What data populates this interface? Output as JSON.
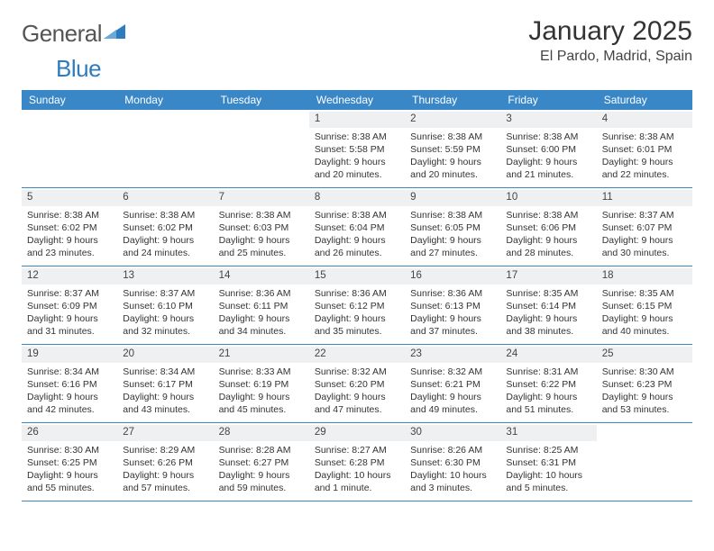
{
  "brand": {
    "name_part1": "General",
    "name_part2": "Blue"
  },
  "title": "January 2025",
  "location": "El Pardo, Madrid, Spain",
  "colors": {
    "header_bg": "#3a87c8",
    "daynum_bg": "#eef0f2",
    "accent": "#2e7cc0"
  },
  "day_names": [
    "Sunday",
    "Monday",
    "Tuesday",
    "Wednesday",
    "Thursday",
    "Friday",
    "Saturday"
  ],
  "weeks": [
    [
      {
        "n": "",
        "sr": "",
        "ss": "",
        "dl": ""
      },
      {
        "n": "",
        "sr": "",
        "ss": "",
        "dl": ""
      },
      {
        "n": "",
        "sr": "",
        "ss": "",
        "dl": ""
      },
      {
        "n": "1",
        "sr": "Sunrise: 8:38 AM",
        "ss": "Sunset: 5:58 PM",
        "dl": "Daylight: 9 hours and 20 minutes."
      },
      {
        "n": "2",
        "sr": "Sunrise: 8:38 AM",
        "ss": "Sunset: 5:59 PM",
        "dl": "Daylight: 9 hours and 20 minutes."
      },
      {
        "n": "3",
        "sr": "Sunrise: 8:38 AM",
        "ss": "Sunset: 6:00 PM",
        "dl": "Daylight: 9 hours and 21 minutes."
      },
      {
        "n": "4",
        "sr": "Sunrise: 8:38 AM",
        "ss": "Sunset: 6:01 PM",
        "dl": "Daylight: 9 hours and 22 minutes."
      }
    ],
    [
      {
        "n": "5",
        "sr": "Sunrise: 8:38 AM",
        "ss": "Sunset: 6:02 PM",
        "dl": "Daylight: 9 hours and 23 minutes."
      },
      {
        "n": "6",
        "sr": "Sunrise: 8:38 AM",
        "ss": "Sunset: 6:02 PM",
        "dl": "Daylight: 9 hours and 24 minutes."
      },
      {
        "n": "7",
        "sr": "Sunrise: 8:38 AM",
        "ss": "Sunset: 6:03 PM",
        "dl": "Daylight: 9 hours and 25 minutes."
      },
      {
        "n": "8",
        "sr": "Sunrise: 8:38 AM",
        "ss": "Sunset: 6:04 PM",
        "dl": "Daylight: 9 hours and 26 minutes."
      },
      {
        "n": "9",
        "sr": "Sunrise: 8:38 AM",
        "ss": "Sunset: 6:05 PM",
        "dl": "Daylight: 9 hours and 27 minutes."
      },
      {
        "n": "10",
        "sr": "Sunrise: 8:38 AM",
        "ss": "Sunset: 6:06 PM",
        "dl": "Daylight: 9 hours and 28 minutes."
      },
      {
        "n": "11",
        "sr": "Sunrise: 8:37 AM",
        "ss": "Sunset: 6:07 PM",
        "dl": "Daylight: 9 hours and 30 minutes."
      }
    ],
    [
      {
        "n": "12",
        "sr": "Sunrise: 8:37 AM",
        "ss": "Sunset: 6:09 PM",
        "dl": "Daylight: 9 hours and 31 minutes."
      },
      {
        "n": "13",
        "sr": "Sunrise: 8:37 AM",
        "ss": "Sunset: 6:10 PM",
        "dl": "Daylight: 9 hours and 32 minutes."
      },
      {
        "n": "14",
        "sr": "Sunrise: 8:36 AM",
        "ss": "Sunset: 6:11 PM",
        "dl": "Daylight: 9 hours and 34 minutes."
      },
      {
        "n": "15",
        "sr": "Sunrise: 8:36 AM",
        "ss": "Sunset: 6:12 PM",
        "dl": "Daylight: 9 hours and 35 minutes."
      },
      {
        "n": "16",
        "sr": "Sunrise: 8:36 AM",
        "ss": "Sunset: 6:13 PM",
        "dl": "Daylight: 9 hours and 37 minutes."
      },
      {
        "n": "17",
        "sr": "Sunrise: 8:35 AM",
        "ss": "Sunset: 6:14 PM",
        "dl": "Daylight: 9 hours and 38 minutes."
      },
      {
        "n": "18",
        "sr": "Sunrise: 8:35 AM",
        "ss": "Sunset: 6:15 PM",
        "dl": "Daylight: 9 hours and 40 minutes."
      }
    ],
    [
      {
        "n": "19",
        "sr": "Sunrise: 8:34 AM",
        "ss": "Sunset: 6:16 PM",
        "dl": "Daylight: 9 hours and 42 minutes."
      },
      {
        "n": "20",
        "sr": "Sunrise: 8:34 AM",
        "ss": "Sunset: 6:17 PM",
        "dl": "Daylight: 9 hours and 43 minutes."
      },
      {
        "n": "21",
        "sr": "Sunrise: 8:33 AM",
        "ss": "Sunset: 6:19 PM",
        "dl": "Daylight: 9 hours and 45 minutes."
      },
      {
        "n": "22",
        "sr": "Sunrise: 8:32 AM",
        "ss": "Sunset: 6:20 PM",
        "dl": "Daylight: 9 hours and 47 minutes."
      },
      {
        "n": "23",
        "sr": "Sunrise: 8:32 AM",
        "ss": "Sunset: 6:21 PM",
        "dl": "Daylight: 9 hours and 49 minutes."
      },
      {
        "n": "24",
        "sr": "Sunrise: 8:31 AM",
        "ss": "Sunset: 6:22 PM",
        "dl": "Daylight: 9 hours and 51 minutes."
      },
      {
        "n": "25",
        "sr": "Sunrise: 8:30 AM",
        "ss": "Sunset: 6:23 PM",
        "dl": "Daylight: 9 hours and 53 minutes."
      }
    ],
    [
      {
        "n": "26",
        "sr": "Sunrise: 8:30 AM",
        "ss": "Sunset: 6:25 PM",
        "dl": "Daylight: 9 hours and 55 minutes."
      },
      {
        "n": "27",
        "sr": "Sunrise: 8:29 AM",
        "ss": "Sunset: 6:26 PM",
        "dl": "Daylight: 9 hours and 57 minutes."
      },
      {
        "n": "28",
        "sr": "Sunrise: 8:28 AM",
        "ss": "Sunset: 6:27 PM",
        "dl": "Daylight: 9 hours and 59 minutes."
      },
      {
        "n": "29",
        "sr": "Sunrise: 8:27 AM",
        "ss": "Sunset: 6:28 PM",
        "dl": "Daylight: 10 hours and 1 minute."
      },
      {
        "n": "30",
        "sr": "Sunrise: 8:26 AM",
        "ss": "Sunset: 6:30 PM",
        "dl": "Daylight: 10 hours and 3 minutes."
      },
      {
        "n": "31",
        "sr": "Sunrise: 8:25 AM",
        "ss": "Sunset: 6:31 PM",
        "dl": "Daylight: 10 hours and 5 minutes."
      },
      {
        "n": "",
        "sr": "",
        "ss": "",
        "dl": ""
      }
    ]
  ]
}
